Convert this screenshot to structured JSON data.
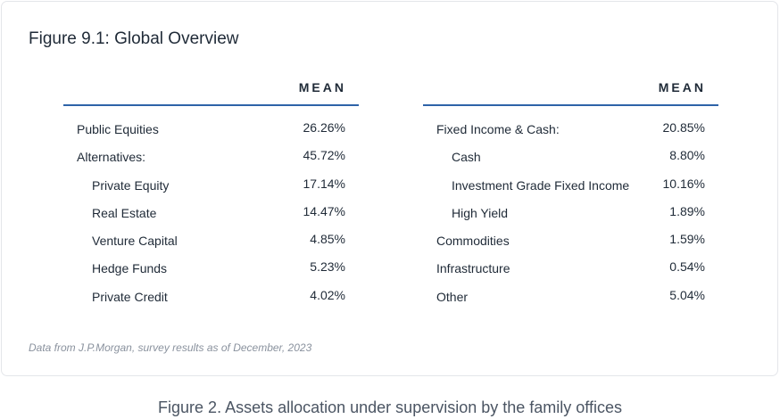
{
  "figure": {
    "title": "Figure 9.1: Global Overview",
    "footnote": "Data from J.P.Morgan, survey results as of December, 2023"
  },
  "left_table": {
    "column_header": "MEAN",
    "rows": [
      {
        "label": "Public Equities",
        "value": "26.26%",
        "indent": false
      },
      {
        "label": "Alternatives:",
        "value": "45.72%",
        "indent": false
      },
      {
        "label": "Private Equity",
        "value": "17.14%",
        "indent": true
      },
      {
        "label": "Real Estate",
        "value": "14.47%",
        "indent": true
      },
      {
        "label": "Venture Capital",
        "value": "4.85%",
        "indent": true
      },
      {
        "label": "Hedge Funds",
        "value": "5.23%",
        "indent": true
      },
      {
        "label": "Private Credit",
        "value": "4.02%",
        "indent": true
      }
    ]
  },
  "right_table": {
    "column_header": "MEAN",
    "rows": [
      {
        "label": "Fixed Income & Cash:",
        "value": "20.85%",
        "indent": false
      },
      {
        "label": "Cash",
        "value": "8.80%",
        "indent": true
      },
      {
        "label": "Investment Grade Fixed Income",
        "value": "10.16%",
        "indent": true
      },
      {
        "label": "High Yield",
        "value": "1.89%",
        "indent": true
      },
      {
        "label": "Commodities",
        "value": "1.59%",
        "indent": false
      },
      {
        "label": "Infrastructure",
        "value": "0.54%",
        "indent": false
      },
      {
        "label": "Other",
        "value": "5.04%",
        "indent": false
      }
    ]
  },
  "caption": "Figure 2. Assets allocation under supervision by the family offices",
  "colors": {
    "header_rule": "#2e63a8",
    "text": "#1f2a37",
    "footnote": "#8a929e",
    "card_border": "#e4e6ea"
  }
}
